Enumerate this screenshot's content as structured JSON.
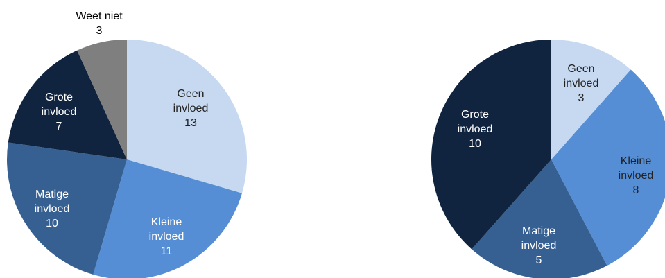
{
  "chart_data": [
    {
      "type": "pie",
      "title": "",
      "slices": [
        {
          "label": [
            "Geen",
            "invloed"
          ],
          "value": 13,
          "color": "#c6d9f1"
        },
        {
          "label": [
            "Kleine",
            "invloed"
          ],
          "value": 11,
          "color": "#558ed5"
        },
        {
          "label": [
            "Matige",
            "invloed"
          ],
          "value": 10,
          "color": "#376092"
        },
        {
          "label": [
            "Grote",
            "invloed"
          ],
          "value": 7,
          "color": "#10243f"
        },
        {
          "label": [
            "Weet niet"
          ],
          "value": 3,
          "color": "#7f7f7f"
        }
      ]
    },
    {
      "type": "pie",
      "title": "",
      "slices": [
        {
          "label": [
            "Geen",
            "invloed"
          ],
          "value": 3,
          "color": "#c6d9f1"
        },
        {
          "label": [
            "Kleine",
            "invloed"
          ],
          "value": 8,
          "color": "#558ed5"
        },
        {
          "label": [
            "Matige",
            "invloed"
          ],
          "value": 5,
          "color": "#376092"
        },
        {
          "label": [
            "Grote",
            "invloed"
          ],
          "value": 10,
          "color": "#10243f"
        }
      ]
    }
  ]
}
